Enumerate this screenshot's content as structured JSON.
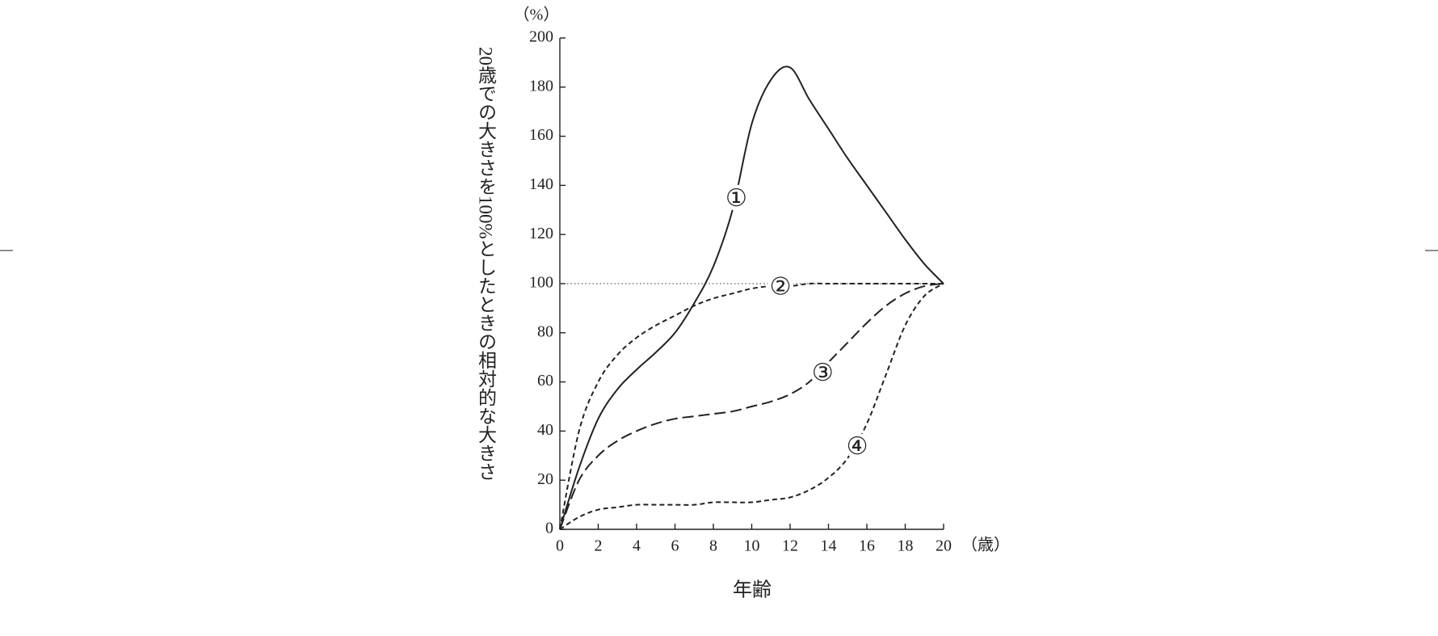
{
  "chart_data": {
    "type": "line",
    "y_unit": "（%）",
    "x_unit": "（歳）",
    "x_label": "年齢",
    "y_label": "20歳での大きさを100%としたときの相対的な大きさ",
    "x": [
      0,
      1,
      2,
      3,
      4,
      5,
      6,
      7,
      8,
      9,
      10,
      11,
      12,
      13,
      14,
      15,
      16,
      17,
      18,
      19,
      20
    ],
    "series": [
      {
        "name": "①",
        "color": "#222222",
        "dash": "solid",
        "values": [
          0,
          25,
          45,
          57,
          65,
          72,
          80,
          92,
          107,
          130,
          165,
          183,
          188,
          175,
          163,
          151,
          140,
          129,
          118,
          108,
          100
        ]
      },
      {
        "name": "②",
        "color": "#222222",
        "dash": "short",
        "values": [
          0,
          40,
          60,
          71,
          78,
          83,
          87,
          91,
          94,
          96,
          98,
          99,
          99,
          100,
          100,
          100,
          100,
          100,
          100,
          100,
          100
        ]
      },
      {
        "name": "③",
        "color": "#222222",
        "dash": "long",
        "values": [
          0,
          20,
          30,
          36,
          40,
          43,
          45,
          46,
          47,
          48,
          50,
          52,
          55,
          60,
          68,
          76,
          84,
          91,
          96,
          99,
          100
        ]
      },
      {
        "name": "④",
        "color": "#222222",
        "dash": "short",
        "values": [
          0,
          5,
          8,
          9,
          10,
          10,
          10,
          10,
          11,
          11,
          11,
          12,
          13,
          16,
          21,
          29,
          43,
          63,
          83,
          95,
          100
        ]
      }
    ],
    "reference_line": 100,
    "xlim": [
      0,
      20
    ],
    "ylim": [
      0,
      200
    ],
    "xticks": [
      0,
      2,
      4,
      6,
      8,
      10,
      12,
      14,
      16,
      18,
      20
    ],
    "yticks": [
      0,
      20,
      40,
      60,
      80,
      100,
      120,
      140,
      160,
      180,
      200
    ],
    "grid": false
  }
}
